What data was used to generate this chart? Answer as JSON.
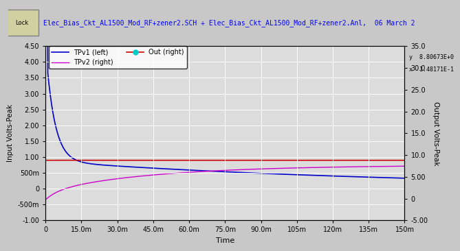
{
  "title": "Elec_Bias_Ckt_AL1500_Mod_RF+zener2.SCH + Elec_Bias_Ckt_AL1500_Mod_RF+zener2.Anl,  06 March 2",
  "xlabel": "Time",
  "ylabel_left": "Input Volts-Peak",
  "ylabel_right": "Output Volts-Peak",
  "xlim": [
    0,
    0.15
  ],
  "ylim_left": [
    -1.0,
    4.5
  ],
  "ylim_right": [
    -5.0,
    35.0
  ],
  "xticks": [
    0,
    0.015,
    0.03,
    0.045,
    0.06,
    0.075,
    0.09,
    0.105,
    0.12,
    0.135,
    0.15
  ],
  "xtick_labels": [
    "0",
    "15.0m",
    "30.0m",
    "45.0m",
    "60.0m",
    "75.0m",
    "90.0m",
    "105m",
    "120m",
    "135m",
    "150m"
  ],
  "yticks_left": [
    -1.0,
    -0.5,
    0.0,
    0.5,
    1.0,
    1.5,
    2.0,
    2.5,
    3.0,
    3.5,
    4.0,
    4.5
  ],
  "ytick_labels_left": [
    "-1.00",
    "-500m",
    "0",
    "500m",
    "1.00",
    "1.50",
    "2.00",
    "2.50",
    "3.00",
    "3.50",
    "4.00",
    "4.50"
  ],
  "yticks_right": [
    -5.0,
    0.0,
    5.0,
    10.0,
    15.0,
    20.0,
    25.0,
    30.0,
    35.0
  ],
  "ytick_labels_right": [
    "-5.00",
    "0",
    "5.00",
    "10.0",
    "15.0",
    "20.0",
    "25.0",
    "30.0",
    "35.0"
  ],
  "bg_color": "#c8c8c8",
  "plot_bg_color": "#dcdcdc",
  "grid_color": "#ffffff",
  "tpv1_color": "#0000cc",
  "tpv2_color": "#cc00cc",
  "out_color": "#cc0000",
  "cursor_color": "#00cccc",
  "header_bg": "#c8c8c8",
  "header_text_color": "#0000ff",
  "cursor_box_color": "#00cccc",
  "cursor_label_y": "8.80673E+0",
  "cursor_label_x": "1.48171E-1",
  "legend_entries": [
    "TPv1 (left)",
    "TPv2 (right)",
    "Out (right)"
  ]
}
